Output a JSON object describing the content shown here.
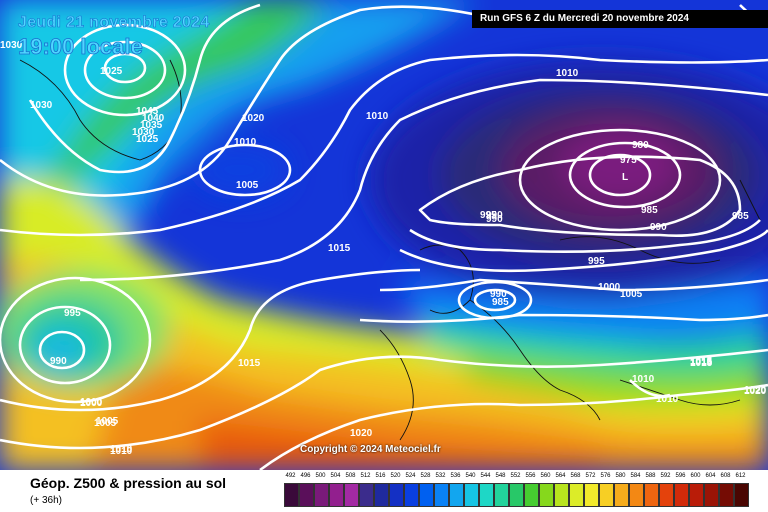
{
  "header": {
    "date": "Jeudi 21 novembre 2024",
    "time": "19:00 locale",
    "run": "Run GFS 6 Z du Mercredi 20 novembre 2024",
    "copyright": "Copyright © 2024 Meteociel.fr"
  },
  "footer": {
    "title": "Géop. Z500 & pression au sol",
    "subtitle": "(+ 36h)"
  },
  "scale": {
    "ticks": [
      "492",
      "496",
      "500",
      "504",
      "508",
      "512",
      "516",
      "520",
      "524",
      "528",
      "532",
      "536",
      "540",
      "544",
      "548",
      "552",
      "556",
      "560",
      "564",
      "568",
      "572",
      "576",
      "580",
      "584",
      "588",
      "592",
      "596",
      "600",
      "604",
      "608",
      "612"
    ],
    "colors": [
      "#3a0a3a",
      "#5a0f5a",
      "#7a1a7a",
      "#921f8e",
      "#a32aa3",
      "#3b2c8c",
      "#1f2a9e",
      "#1430c4",
      "#0a3fe0",
      "#0060f0",
      "#0a82f5",
      "#12a6ef",
      "#16c5e4",
      "#1ed7c6",
      "#22d49c",
      "#28c868",
      "#46cc30",
      "#86d81c",
      "#b8e41e",
      "#dcec28",
      "#f2ea2c",
      "#f7cf24",
      "#f6ac1c",
      "#f38814",
      "#ee6510",
      "#e4420c",
      "#d22a0a",
      "#b91c08",
      "#9a1406",
      "#750c04",
      "#4a0602"
    ]
  },
  "isobars": [
    "1030",
    "1030",
    "1025",
    "1020",
    "1010",
    "1010",
    "1015",
    "1010",
    "1005",
    "1045",
    "1040",
    "1035",
    "1030",
    "1025",
    "995",
    "990",
    "975",
    "980",
    "985",
    "990",
    "990",
    "995",
    "1000",
    "1005",
    "985",
    "990",
    "985",
    "1015",
    "1010",
    "1010",
    "1015",
    "1020",
    "1000",
    "1005",
    "1010",
    "1020",
    "1015",
    "995",
    "990",
    "1000",
    "1005",
    "1010",
    "1015",
    "1020"
  ]
}
